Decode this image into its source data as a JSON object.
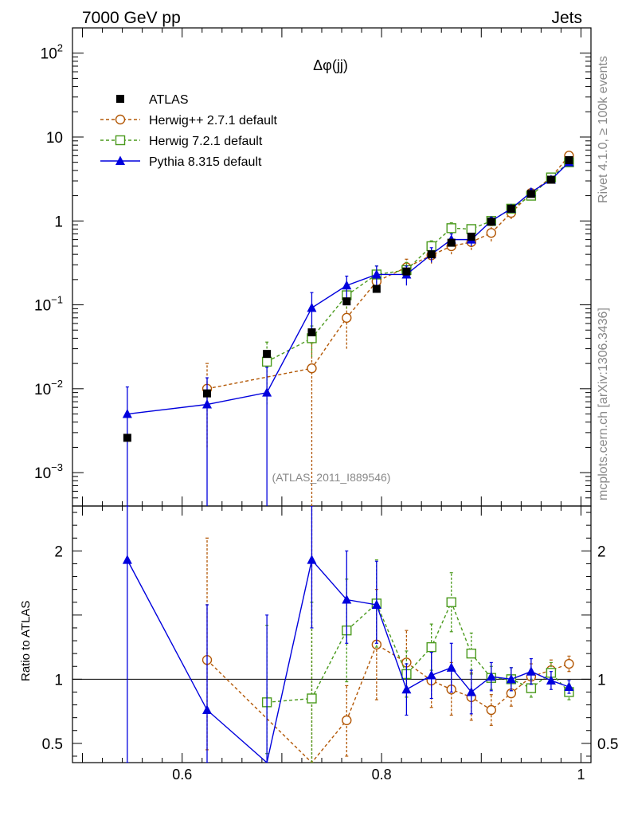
{
  "header": {
    "left": "7000 GeV pp",
    "right": "Jets"
  },
  "side_labels": {
    "rivet": "Rivet 4.1.0, ≥ 100k events",
    "mcplots": "mcplots.cern.ch [arXiv:1306.3436]"
  },
  "chart_data": {
    "type": "scatter",
    "title": "Δφ(jj)",
    "analysis_label": "(ATLAS_2011_I889546)",
    "top_panel": {
      "yscale": "log",
      "ylim": [
        0.0004,
        200
      ],
      "ytick_labels": [
        {
          "v": 100,
          "base": "10",
          "exp": "2"
        },
        {
          "v": 10,
          "base": "10",
          "exp": ""
        },
        {
          "v": 1,
          "base": "1",
          "exp": ""
        },
        {
          "v": 0.1,
          "base": "10",
          "exp": "−1"
        },
        {
          "v": 0.01,
          "base": "10",
          "exp": "−2"
        },
        {
          "v": 0.001,
          "base": "10",
          "exp": "−3"
        }
      ]
    },
    "ratio_panel": {
      "ylabel": "Ratio to ATLAS",
      "ylim": [
        0.35,
        2.35
      ],
      "ytick_labels": [
        {
          "v": 0.5,
          "label": "0.5"
        },
        {
          "v": 1,
          "label": "1"
        },
        {
          "v": 2,
          "label": "2"
        }
      ]
    },
    "x_axis": {
      "xlim": [
        0.49,
        1.01
      ],
      "tick_labels": [
        {
          "v": 0.6,
          "label": "0.6"
        },
        {
          "v": 0.8,
          "label": "0.8"
        },
        {
          "v": 1.0,
          "label": "1"
        }
      ]
    },
    "series": [
      {
        "name": "ATLAS",
        "style": "data",
        "color": "#000000",
        "x": [
          0.545,
          0.625,
          0.685,
          0.73,
          0.765,
          0.795,
          0.825,
          0.85,
          0.87,
          0.89,
          0.91,
          0.93,
          0.95,
          0.97,
          0.988
        ],
        "y": [
          0.0026,
          0.0088,
          0.026,
          0.047,
          0.11,
          0.155,
          0.25,
          0.4,
          0.55,
          0.65,
          0.98,
          1.4,
          2.1,
          3.1,
          5.3
        ]
      },
      {
        "name": "Herwig++ 2.7.1 default",
        "style": "circle-dashed",
        "color": "#b35806",
        "x": [
          0.625,
          0.73,
          0.765,
          0.795,
          0.825,
          0.85,
          0.87,
          0.89,
          0.91,
          0.93,
          0.95,
          0.97,
          0.988
        ],
        "y": [
          0.01,
          0.0175,
          0.07,
          0.19,
          0.28,
          0.39,
          0.5,
          0.56,
          0.72,
          1.25,
          2.15,
          3.3,
          6.0
        ],
        "ylo": [
          0.002,
          0.0004,
          0.03,
          0.14,
          0.22,
          0.31,
          0.4,
          0.45,
          0.57,
          1.05,
          1.9,
          3.0,
          5.5
        ],
        "yhi": [
          0.02,
          0.035,
          0.11,
          0.24,
          0.35,
          0.48,
          0.62,
          0.68,
          0.88,
          1.45,
          2.4,
          3.6,
          6.5
        ],
        "ratio": [
          1.15,
          0.33,
          0.68,
          1.27,
          1.13,
          0.99,
          0.92,
          0.86,
          0.76,
          0.89,
          1.02,
          1.07,
          1.12
        ],
        "rlo": [
          0.45,
          0.35,
          0.4,
          0.84,
          0.86,
          0.78,
          0.72,
          0.68,
          0.64,
          0.79,
          0.93,
          0.99,
          1.06
        ],
        "rhi": [
          2.1,
          2.35,
          0.95,
          1.7,
          1.38,
          1.21,
          1.13,
          1.05,
          0.88,
          0.99,
          1.12,
          1.15,
          1.18
        ]
      },
      {
        "name": "Herwig 7.2.1 default",
        "style": "square-dashed",
        "color": "#4a9a1c",
        "x": [
          0.685,
          0.73,
          0.765,
          0.795,
          0.825,
          0.85,
          0.87,
          0.89,
          0.91,
          0.93,
          0.95,
          0.97,
          0.988
        ],
        "y": [
          0.021,
          0.04,
          0.13,
          0.23,
          0.26,
          0.5,
          0.82,
          0.8,
          1.0,
          1.4,
          2.0,
          3.3,
          5.0
        ],
        "ylo": [
          0.0065,
          0.024,
          0.09,
          0.18,
          0.21,
          0.42,
          0.7,
          0.7,
          0.9,
          1.28,
          1.85,
          3.05,
          4.7
        ],
        "yhi": [
          0.036,
          0.056,
          0.17,
          0.29,
          0.32,
          0.58,
          0.95,
          0.9,
          1.1,
          1.52,
          2.15,
          3.55,
          5.3
        ],
        "ratio": [
          0.82,
          0.85,
          1.38,
          1.59,
          1.04,
          1.25,
          1.6,
          1.2,
          1.01,
          1.0,
          0.93,
          1.05,
          0.9
        ],
        "rlo": [
          0.42,
          0.35,
          0.98,
          1.25,
          0.86,
          1.07,
          1.37,
          1.04,
          0.92,
          0.91,
          0.86,
          0.97,
          0.84
        ],
        "rhi": [
          1.42,
          1.6,
          1.78,
          1.93,
          1.22,
          1.43,
          1.83,
          1.36,
          1.1,
          1.09,
          1.0,
          1.13,
          0.96
        ]
      },
      {
        "name": "Pythia 8.315 default",
        "style": "triangle-solid",
        "color": "#0000dd",
        "x": [
          0.545,
          0.625,
          0.685,
          0.73,
          0.765,
          0.795,
          0.825,
          0.85,
          0.87,
          0.89,
          0.91,
          0.93,
          0.95,
          0.97,
          0.988
        ],
        "y": [
          0.005,
          0.0065,
          0.009,
          0.092,
          0.17,
          0.23,
          0.23,
          0.4,
          0.6,
          0.6,
          1.0,
          1.4,
          2.2,
          3.1,
          5.0
        ],
        "ylo": [
          0.0004,
          0.0004,
          0.0004,
          0.048,
          0.12,
          0.17,
          0.17,
          0.32,
          0.5,
          0.5,
          0.9,
          1.28,
          2.0,
          2.9,
          4.7
        ],
        "yhi": [
          0.0105,
          0.0135,
          0.018,
          0.14,
          0.22,
          0.29,
          0.29,
          0.48,
          0.7,
          0.7,
          1.1,
          1.52,
          2.4,
          3.3,
          5.3
        ],
        "ratio": [
          1.93,
          0.76,
          0.33,
          1.93,
          1.62,
          1.58,
          0.92,
          1.03,
          1.09,
          0.9,
          1.02,
          1.0,
          1.06,
          0.99,
          0.94
        ],
        "rlo": [
          0.35,
          0.35,
          0.35,
          1.4,
          1.28,
          1.28,
          0.72,
          0.85,
          0.9,
          0.73,
          0.91,
          0.91,
          0.96,
          0.92,
          0.89
        ],
        "rhi": [
          2.35,
          1.58,
          1.5,
          2.35,
          2.0,
          1.92,
          1.12,
          1.21,
          1.28,
          1.07,
          1.13,
          1.09,
          1.16,
          1.06,
          0.99
        ]
      }
    ]
  }
}
